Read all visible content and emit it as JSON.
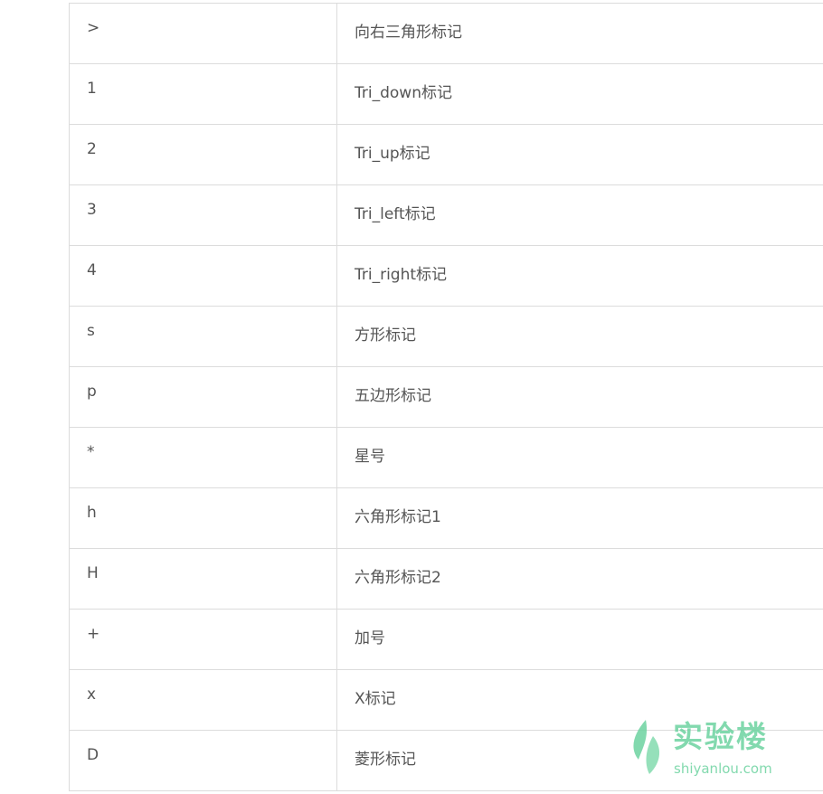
{
  "markers_table": {
    "rows": [
      {
        "code": ">",
        "description": "向右三角形标记"
      },
      {
        "code": "1",
        "description": "Tri_down标记"
      },
      {
        "code": "2",
        "description": "Tri_up标记"
      },
      {
        "code": "3",
        "description": "Tri_left标记"
      },
      {
        "code": "4",
        "description": "Tri_right标记"
      },
      {
        "code": "s",
        "description": "方形标记"
      },
      {
        "code": "p",
        "description": "五边形标记"
      },
      {
        "code": "*",
        "description": "星号"
      },
      {
        "code": "h",
        "description": "六角形标记1"
      },
      {
        "code": "H",
        "description": "六角形标记2"
      },
      {
        "code": "+",
        "description": "加号"
      },
      {
        "code": "x",
        "description": "X标记"
      },
      {
        "code": "D",
        "description": "菱形标记"
      }
    ]
  },
  "watermark": {
    "name": "实验楼",
    "domain": "shiyanlou.com",
    "logo_icon": "leaf-logo-icon",
    "color": "#6dd3a0"
  },
  "colors": {
    "border": "#dcdcdc",
    "text": "#555555"
  }
}
